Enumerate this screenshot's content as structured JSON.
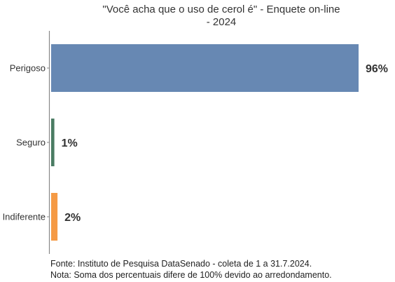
{
  "chart_data": {
    "type": "bar",
    "orientation": "horizontal",
    "title": "\"Você acha que o uso de cerol é\" - Enquete on-line",
    "subtitle": "- 2024",
    "categories": [
      "Perigoso",
      "Seguro",
      "Indiferente"
    ],
    "values": [
      96,
      1,
      2
    ],
    "data_labels": [
      "96%",
      "1%",
      "2%"
    ],
    "colors": [
      "#6788b3",
      "#4a7c63",
      "#f59a45"
    ],
    "xlim": [
      0,
      96
    ],
    "grid": false,
    "xlabel": "",
    "ylabel": ""
  },
  "footer": {
    "source": "Fonte: Instituto de Pesquisa DataSenado - coleta de 1 a 31.7.2024.",
    "note": "Nota: Soma dos percentuais difere de 100% devido ao arredondamento."
  }
}
